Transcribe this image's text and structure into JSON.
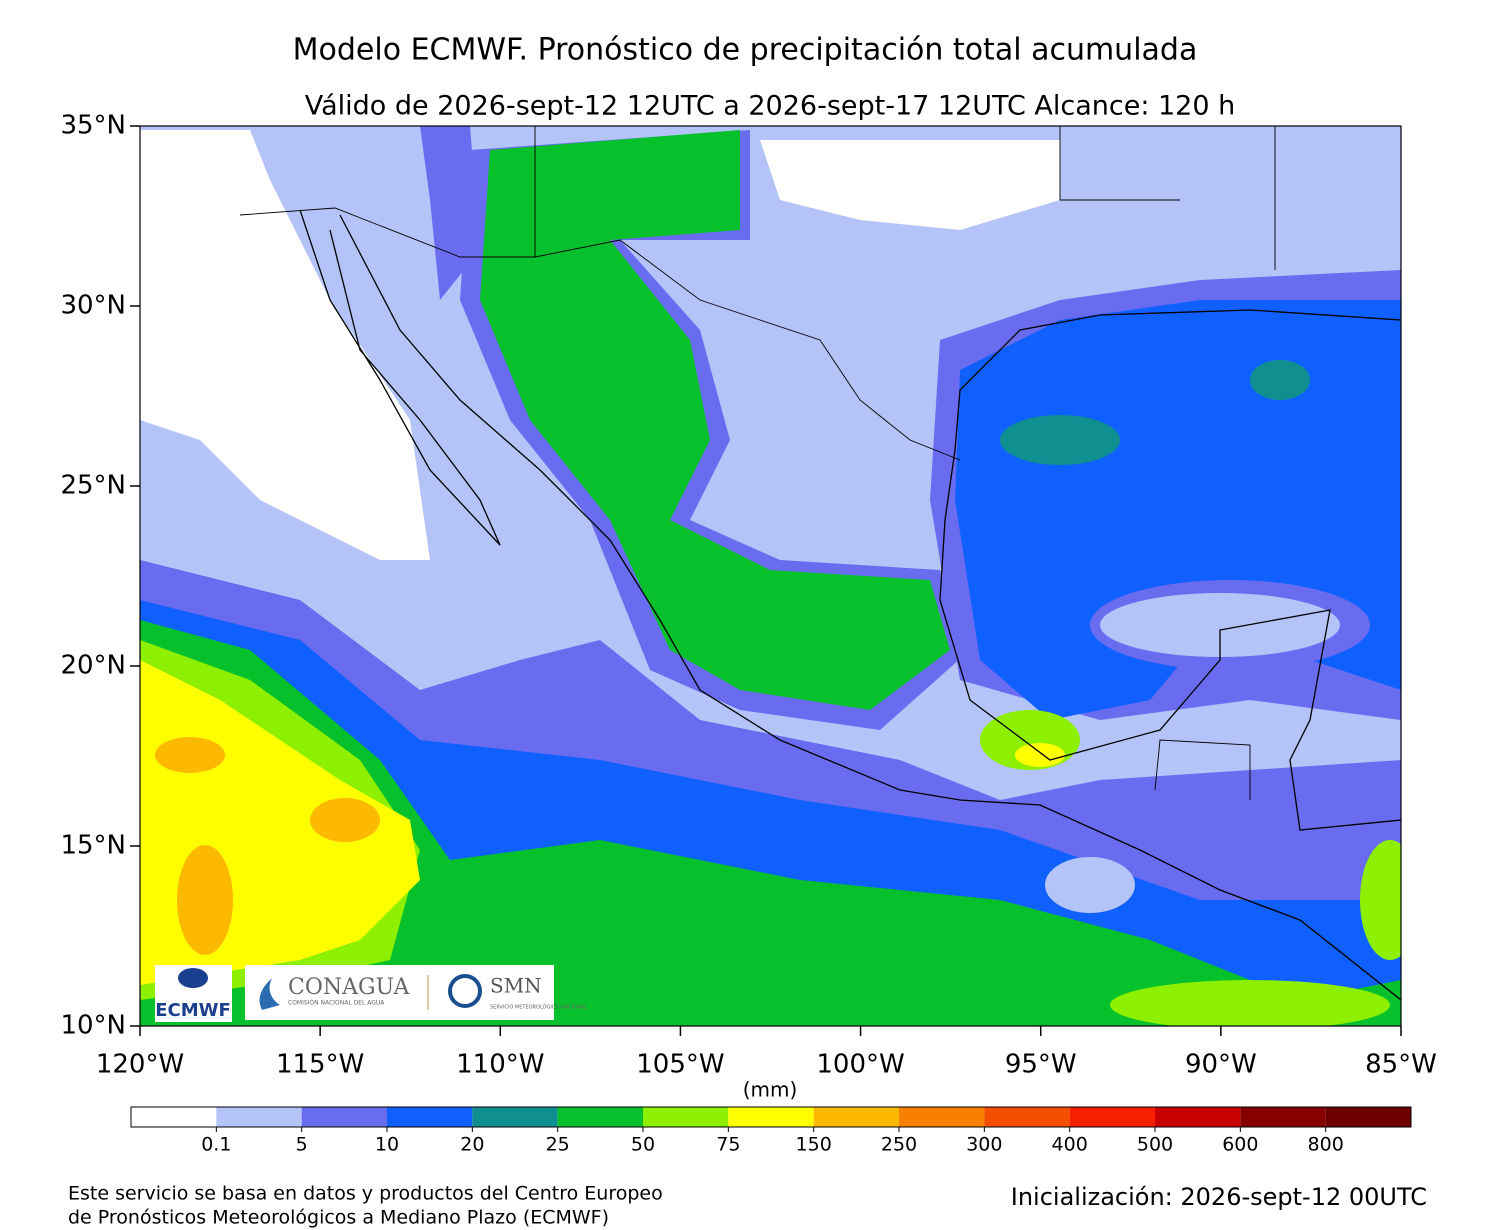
{
  "title": "Modelo ECMWF. Pronóstico de precipitación total acumulada",
  "subtitle": "Válido de 2026-sept-12 12UTC a 2026-sept-17 12UTC   Alcance: 120 h",
  "lat_labels": [
    "35°N",
    "30°N",
    "25°N",
    "20°N",
    "15°N",
    "10°N"
  ],
  "lon_labels": [
    "120°W",
    "115°W",
    "110°W",
    "105°W",
    "100°W",
    "95°W",
    "90°W",
    "85°W"
  ],
  "colorbar": {
    "unit": "(mm)",
    "colors": [
      "#ffffff",
      "#b4c4f8",
      "#6a6cf0",
      "#1060ff",
      "#0f8f8f",
      "#06c02c",
      "#8cf000",
      "#ffff00",
      "#fcb900",
      "#f78000",
      "#f44e00",
      "#f82000",
      "#c80000",
      "#860000",
      "#6e0000"
    ],
    "labels": [
      0.1,
      5,
      10,
      20,
      25,
      50,
      75,
      150,
      250,
      300,
      400,
      500,
      600,
      800
    ]
  },
  "logos": {
    "ecmwf": "ECMWF",
    "conagua": "CONAGUA",
    "conagua_sub": "COMISIÓN NACIONAL DEL AGUA",
    "smn": "SMN",
    "smn_sub": "SERVICIO METEOROLÓGICO NACIONAL"
  },
  "footer": {
    "credit": [
      "Este servicio se basa en datos y productos del Centro Europeo",
      "de Pronósticos Meteorológicos a Mediano Plazo (ECMWF)"
    ],
    "init": "Inicialización: 2026-sept-12 00UTC"
  }
}
